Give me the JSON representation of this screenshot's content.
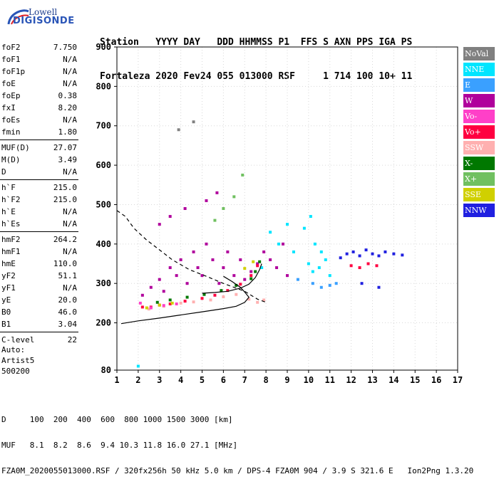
{
  "logo": {
    "line1": "Lowell",
    "line2": "DIGISONDE"
  },
  "header": {
    "row1": "Station   YYYY DAY   DDD HHMMSS P1  FFS S AXN PPS IGA PS",
    "row2": "Fortaleza 2020 Fev24 055 013000 RSF     1 714 100 10+ 11"
  },
  "params": {
    "g1": [
      [
        "foF2",
        "7.750"
      ],
      [
        "foF1",
        "N/A"
      ],
      [
        "foF1p",
        "N/A"
      ],
      [
        "foE",
        "N/A"
      ],
      [
        "foEp",
        "0.38"
      ],
      [
        "fxI",
        "8.20"
      ],
      [
        "foEs",
        "N/A"
      ],
      [
        "fmin",
        "1.80"
      ]
    ],
    "g2": [
      [
        "MUF(D)",
        "27.07"
      ],
      [
        "M(D)",
        "3.49"
      ],
      [
        "D",
        "N/A"
      ]
    ],
    "g3": [
      [
        "h`F",
        "215.0"
      ],
      [
        "h`F2",
        "215.0"
      ],
      [
        "h`E",
        "N/A"
      ],
      [
        "h`Es",
        "N/A"
      ]
    ],
    "g4": [
      [
        "hmF2",
        "264.2"
      ],
      [
        "hmF1",
        "N/A"
      ],
      [
        "hmE",
        "110.0"
      ],
      [
        "yF2",
        "51.1"
      ],
      [
        "yF1",
        "N/A"
      ],
      [
        "yE",
        "20.0"
      ],
      [
        "B0",
        "46.0"
      ],
      [
        "B1",
        "3.04"
      ]
    ],
    "g5": [
      [
        "C-level",
        "22"
      ]
    ]
  },
  "auto": {
    "l1": "Auto:",
    "l2": "Artist5",
    "l3": "500200"
  },
  "footer": {
    "l1": "D     100  200  400  600  800 1000 1500 3000 [km]",
    "l2": "MUF   8.1  8.2  8.6  9.4 10.3 11.8 16.0 27.1 [MHz]",
    "l3": "FZA0M_2020055013000.RSF / 320fx256h 50 kHz 5.0 km / DPS-4 FZA0M 904 / 3.9 S 321.6 E   Ion2Png 1.3.20"
  },
  "legend": [
    {
      "label": "NoVal",
      "color": "#808080"
    },
    {
      "label": "NNE",
      "color": "#00e5ff"
    },
    {
      "label": "E",
      "color": "#3aa0ff"
    },
    {
      "label": "W",
      "color": "#b0009c"
    },
    {
      "label": "Vo-",
      "color": "#ff40c8"
    },
    {
      "label": "Vo+",
      "color": "#ff0040"
    },
    {
      "label": "SSW",
      "color": "#ffb0b0"
    },
    {
      "label": "X-",
      "color": "#007800"
    },
    {
      "label": "X+",
      "color": "#70c060"
    },
    {
      "label": "SSE",
      "color": "#d0d000"
    },
    {
      "label": "NNW",
      "color": "#2020e0"
    }
  ],
  "chart_data": {
    "type": "scatter",
    "xlim": [
      1,
      17
    ],
    "ylim": [
      80,
      900
    ],
    "x_ticks": [
      1,
      2,
      3,
      4,
      5,
      6,
      7,
      8,
      9,
      10,
      11,
      12,
      13,
      14,
      15,
      16,
      17
    ],
    "y_ticks": [
      80,
      200,
      300,
      400,
      500,
      600,
      700,
      800,
      900
    ],
    "grid": true,
    "legend_position": "right",
    "series": [
      {
        "name": "W",
        "points": [
          [
            2.2,
            270
          ],
          [
            2.6,
            290
          ],
          [
            3.0,
            310
          ],
          [
            3.2,
            280
          ],
          [
            3.5,
            340
          ],
          [
            3.8,
            320
          ],
          [
            4.0,
            360
          ],
          [
            4.3,
            300
          ],
          [
            4.6,
            380
          ],
          [
            4.8,
            340
          ],
          [
            5.0,
            320
          ],
          [
            5.2,
            400
          ],
          [
            5.5,
            360
          ],
          [
            5.8,
            300
          ],
          [
            6.0,
            340
          ],
          [
            6.2,
            380
          ],
          [
            6.5,
            320
          ],
          [
            6.8,
            360
          ],
          [
            7.0,
            310
          ],
          [
            7.3,
            330
          ],
          [
            7.6,
            350
          ],
          [
            7.9,
            380
          ],
          [
            8.2,
            360
          ],
          [
            8.5,
            340
          ],
          [
            8.8,
            400
          ],
          [
            9.0,
            320
          ],
          [
            3.0,
            450
          ],
          [
            3.5,
            470
          ],
          [
            4.2,
            490
          ],
          [
            5.2,
            510
          ],
          [
            5.7,
            530
          ]
        ]
      },
      {
        "name": "NNE",
        "points": [
          [
            2.0,
            90
          ],
          [
            7.8,
            340
          ],
          [
            8.2,
            430
          ],
          [
            8.6,
            400
          ],
          [
            9.0,
            450
          ],
          [
            9.3,
            380
          ],
          [
            10.0,
            350
          ],
          [
            10.2,
            330
          ],
          [
            10.5,
            340
          ],
          [
            10.8,
            360
          ],
          [
            11.0,
            320
          ],
          [
            10.3,
            400
          ],
          [
            10.6,
            380
          ],
          [
            9.8,
            440
          ],
          [
            10.1,
            470
          ]
        ]
      },
      {
        "name": "E",
        "points": [
          [
            10.2,
            300
          ],
          [
            10.6,
            290
          ],
          [
            11.0,
            295
          ],
          [
            11.3,
            300
          ],
          [
            9.5,
            310
          ]
        ]
      },
      {
        "name": "Vo+",
        "points": [
          [
            2.2,
            240
          ],
          [
            2.6,
            240
          ],
          [
            3.0,
            245
          ],
          [
            3.5,
            248
          ],
          [
            4.2,
            255
          ],
          [
            5.0,
            262
          ],
          [
            5.6,
            270
          ],
          [
            6.2,
            282
          ],
          [
            6.8,
            298
          ],
          [
            7.3,
            320
          ],
          [
            7.6,
            345
          ],
          [
            12.0,
            345
          ],
          [
            12.4,
            340
          ],
          [
            12.8,
            350
          ],
          [
            13.2,
            345
          ]
        ]
      },
      {
        "name": "SSW",
        "points": [
          [
            2.5,
            235
          ],
          [
            3.2,
            242
          ],
          [
            4.0,
            250
          ],
          [
            4.6,
            253
          ],
          [
            5.4,
            258
          ],
          [
            6.0,
            266
          ],
          [
            6.6,
            272
          ],
          [
            7.2,
            260
          ],
          [
            7.6,
            252
          ],
          [
            7.9,
            258
          ]
        ]
      },
      {
        "name": "X-",
        "points": [
          [
            2.9,
            252
          ],
          [
            3.5,
            258
          ],
          [
            4.3,
            265
          ],
          [
            5.1,
            272
          ],
          [
            5.9,
            282
          ],
          [
            6.6,
            295
          ],
          [
            7.3,
            312
          ],
          [
            7.5,
            330
          ],
          [
            7.7,
            355
          ]
        ]
      },
      {
        "name": "X+",
        "points": [
          [
            5.6,
            460
          ],
          [
            6.0,
            490
          ],
          [
            6.5,
            520
          ],
          [
            6.9,
            575
          ]
        ]
      },
      {
        "name": "SSE",
        "points": [
          [
            2.4,
            238
          ],
          [
            3.0,
            245
          ],
          [
            3.6,
            250
          ],
          [
            7.0,
            338
          ],
          [
            7.4,
            355
          ]
        ]
      },
      {
        "name": "NNW",
        "points": [
          [
            11.5,
            365
          ],
          [
            11.8,
            375
          ],
          [
            12.1,
            380
          ],
          [
            12.4,
            370
          ],
          [
            12.7,
            385
          ],
          [
            13.0,
            375
          ],
          [
            13.3,
            370
          ],
          [
            13.6,
            380
          ],
          [
            14.0,
            375
          ],
          [
            14.4,
            372
          ],
          [
            12.5,
            300
          ],
          [
            13.3,
            290
          ]
        ]
      },
      {
        "name": "Vo-",
        "points": [
          [
            2.1,
            250
          ],
          [
            2.6,
            238
          ],
          [
            3.2,
            244
          ],
          [
            3.8,
            248
          ]
        ]
      },
      {
        "name": "NoVal",
        "points": [
          [
            3.9,
            690
          ],
          [
            4.6,
            710
          ]
        ]
      }
    ],
    "lines": [
      {
        "style": "solid",
        "points": [
          [
            1.2,
            198
          ],
          [
            2.0,
            205
          ],
          [
            3.0,
            212
          ],
          [
            4.0,
            220
          ],
          [
            5.0,
            228
          ],
          [
            6.0,
            236
          ],
          [
            6.6,
            242
          ],
          [
            7.0,
            252
          ],
          [
            7.2,
            265
          ],
          [
            7.0,
            278
          ],
          [
            6.8,
            290
          ],
          [
            6.4,
            305
          ],
          [
            6.0,
            318
          ]
        ]
      },
      {
        "style": "solid",
        "points": [
          [
            5.0,
            275
          ],
          [
            5.6,
            277
          ],
          [
            6.2,
            280
          ],
          [
            6.8,
            288
          ],
          [
            7.2,
            298
          ],
          [
            7.5,
            315
          ],
          [
            7.7,
            335
          ],
          [
            7.8,
            350
          ]
        ]
      },
      {
        "style": "dashed",
        "points": [
          [
            1.0,
            485
          ],
          [
            1.4,
            470
          ],
          [
            1.8,
            440
          ],
          [
            2.4,
            410
          ],
          [
            3.0,
            385
          ],
          [
            3.6,
            360
          ],
          [
            4.4,
            335
          ],
          [
            5.2,
            318
          ],
          [
            6.0,
            300
          ],
          [
            7.0,
            280
          ],
          [
            7.6,
            260
          ],
          [
            8.0,
            252
          ]
        ]
      }
    ]
  }
}
